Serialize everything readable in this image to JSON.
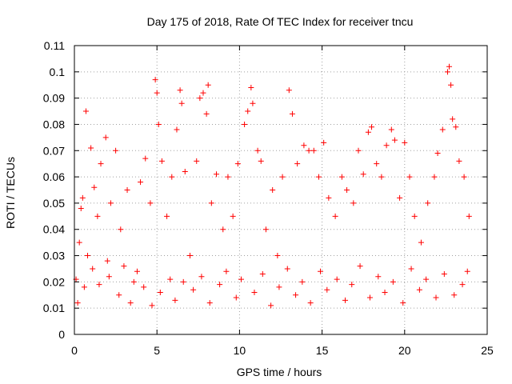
{
  "chart_data": {
    "type": "scatter",
    "title": "Day 175 of 2018, Rate Of TEC Index for receiver tncu",
    "xlabel": "GPS time / hours",
    "ylabel": "ROTI / TECUs",
    "xlim": [
      0,
      25
    ],
    "ylim": [
      0,
      0.11
    ],
    "xticks": [
      "0",
      "5",
      "10",
      "15",
      "20",
      "25"
    ],
    "yticks": [
      "0",
      "0.01",
      "0.02",
      "0.03",
      "0.04",
      "0.05",
      "0.06",
      "0.07",
      "0.08",
      "0.09",
      "0.1",
      "0.11"
    ],
    "grid": true,
    "marker": "+",
    "color": "#ff0000",
    "points": [
      [
        0.2,
        0.012
      ],
      [
        0.3,
        0.035
      ],
      [
        0.4,
        0.048
      ],
      [
        0.5,
        0.052
      ],
      [
        0.7,
        0.085
      ],
      [
        0.8,
        0.03
      ],
      [
        1.0,
        0.071
      ],
      [
        1.2,
        0.056
      ],
      [
        1.4,
        0.045
      ],
      [
        1.6,
        0.065
      ],
      [
        1.9,
        0.075
      ],
      [
        2.0,
        0.028
      ],
      [
        2.2,
        0.05
      ],
      [
        2.5,
        0.07
      ],
      [
        2.8,
        0.04
      ],
      [
        3.2,
        0.055
      ],
      [
        3.6,
        0.02
      ],
      [
        4.0,
        0.058
      ],
      [
        4.3,
        0.067
      ],
      [
        4.6,
        0.05
      ],
      [
        4.9,
        0.097
      ],
      [
        5.0,
        0.092
      ],
      [
        5.1,
        0.08
      ],
      [
        5.3,
        0.066
      ],
      [
        5.6,
        0.045
      ],
      [
        5.9,
        0.06
      ],
      [
        6.2,
        0.078
      ],
      [
        6.4,
        0.093
      ],
      [
        6.5,
        0.088
      ],
      [
        6.7,
        0.062
      ],
      [
        7.0,
        0.03
      ],
      [
        7.4,
        0.066
      ],
      [
        7.6,
        0.09
      ],
      [
        7.8,
        0.092
      ],
      [
        8.0,
        0.084
      ],
      [
        8.1,
        0.095
      ],
      [
        8.3,
        0.05
      ],
      [
        8.6,
        0.061
      ],
      [
        9.0,
        0.04
      ],
      [
        9.3,
        0.06
      ],
      [
        9.6,
        0.045
      ],
      [
        9.9,
        0.065
      ],
      [
        10.3,
        0.08
      ],
      [
        10.5,
        0.085
      ],
      [
        10.7,
        0.094
      ],
      [
        10.8,
        0.088
      ],
      [
        11.1,
        0.07
      ],
      [
        11.3,
        0.066
      ],
      [
        11.6,
        0.04
      ],
      [
        12.0,
        0.055
      ],
      [
        12.3,
        0.03
      ],
      [
        12.6,
        0.06
      ],
      [
        13.0,
        0.093
      ],
      [
        13.2,
        0.084
      ],
      [
        13.5,
        0.065
      ],
      [
        13.9,
        0.072
      ],
      [
        14.2,
        0.07
      ],
      [
        14.5,
        0.07
      ],
      [
        14.8,
        0.06
      ],
      [
        15.1,
        0.073
      ],
      [
        15.4,
        0.052
      ],
      [
        15.8,
        0.045
      ],
      [
        16.2,
        0.06
      ],
      [
        16.5,
        0.055
      ],
      [
        16.9,
        0.05
      ],
      [
        17.2,
        0.07
      ],
      [
        17.5,
        0.061
      ],
      [
        17.8,
        0.077
      ],
      [
        18.0,
        0.079
      ],
      [
        18.3,
        0.065
      ],
      [
        18.6,
        0.06
      ],
      [
        18.9,
        0.072
      ],
      [
        19.2,
        0.078
      ],
      [
        19.4,
        0.074
      ],
      [
        19.7,
        0.052
      ],
      [
        20.0,
        0.073
      ],
      [
        20.3,
        0.06
      ],
      [
        20.6,
        0.045
      ],
      [
        21.0,
        0.035
      ],
      [
        21.4,
        0.05
      ],
      [
        21.8,
        0.06
      ],
      [
        22.0,
        0.069
      ],
      [
        22.3,
        0.078
      ],
      [
        22.6,
        0.1
      ],
      [
        22.7,
        0.102
      ],
      [
        22.8,
        0.095
      ],
      [
        22.9,
        0.082
      ],
      [
        23.1,
        0.079
      ],
      [
        23.3,
        0.066
      ],
      [
        23.6,
        0.06
      ],
      [
        23.9,
        0.045
      ],
      [
        0.1,
        0.021
      ],
      [
        0.6,
        0.018
      ],
      [
        1.1,
        0.025
      ],
      [
        1.5,
        0.019
      ],
      [
        2.1,
        0.022
      ],
      [
        2.7,
        0.015
      ],
      [
        3.0,
        0.026
      ],
      [
        3.4,
        0.012
      ],
      [
        3.8,
        0.024
      ],
      [
        4.2,
        0.018
      ],
      [
        4.7,
        0.011
      ],
      [
        5.2,
        0.016
      ],
      [
        5.8,
        0.021
      ],
      [
        6.1,
        0.013
      ],
      [
        6.6,
        0.02
      ],
      [
        7.2,
        0.017
      ],
      [
        7.7,
        0.022
      ],
      [
        8.2,
        0.012
      ],
      [
        8.8,
        0.019
      ],
      [
        9.2,
        0.024
      ],
      [
        9.8,
        0.014
      ],
      [
        10.1,
        0.021
      ],
      [
        10.9,
        0.016
      ],
      [
        11.4,
        0.023
      ],
      [
        11.9,
        0.011
      ],
      [
        12.4,
        0.018
      ],
      [
        12.9,
        0.025
      ],
      [
        13.4,
        0.015
      ],
      [
        13.8,
        0.02
      ],
      [
        14.3,
        0.012
      ],
      [
        14.9,
        0.024
      ],
      [
        15.3,
        0.017
      ],
      [
        15.9,
        0.021
      ],
      [
        16.4,
        0.013
      ],
      [
        16.8,
        0.019
      ],
      [
        17.3,
        0.026
      ],
      [
        17.9,
        0.014
      ],
      [
        18.4,
        0.022
      ],
      [
        18.8,
        0.016
      ],
      [
        19.3,
        0.02
      ],
      [
        19.9,
        0.012
      ],
      [
        20.4,
        0.025
      ],
      [
        20.9,
        0.017
      ],
      [
        21.3,
        0.021
      ],
      [
        21.9,
        0.014
      ],
      [
        22.4,
        0.023
      ],
      [
        23.0,
        0.015
      ],
      [
        23.5,
        0.019
      ],
      [
        23.8,
        0.024
      ]
    ]
  }
}
